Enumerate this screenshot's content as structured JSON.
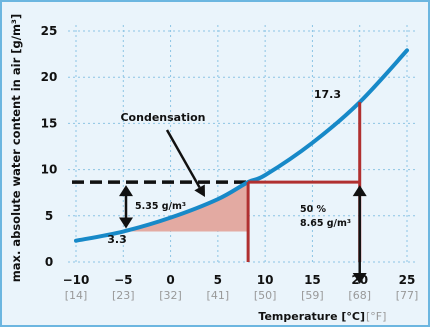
{
  "chart_data": {
    "type": "line",
    "title": "",
    "xlabel": "Temperature [°C]",
    "xlabel_secondary": "[°F]",
    "ylabel": "max. absolute water content in air [g/m³]",
    "xlim": [
      -10,
      25
    ],
    "ylim": [
      0,
      25
    ],
    "x_ticks": [
      "−10",
      "−5",
      "0",
      "5",
      "10",
      "15",
      "20",
      "25"
    ],
    "x_ticks_values": [
      -10,
      -5,
      0,
      5,
      10,
      15,
      20,
      25
    ],
    "x_ticks_fahrenheit": [
      "[14]",
      "[23]",
      "[32]",
      "[41]",
      "[50]",
      "[59]",
      "[68]",
      "[77]"
    ],
    "y_ticks": [
      "0",
      "5",
      "10",
      "15",
      "20",
      "25"
    ],
    "y_ticks_values": [
      0,
      5,
      10,
      15,
      20,
      25
    ],
    "grid": true,
    "series": [
      {
        "x": [
          -10,
          -5,
          0,
          5,
          8.2,
          10,
          15,
          20,
          25
        ],
        "y": [
          2.3,
          3.3,
          4.8,
          6.8,
          8.65,
          9.4,
          12.9,
          17.3,
          22.9
        ]
      }
    ],
    "annotations": {
      "condensation_label": "Condensation",
      "point_high_label": "17.3",
      "point_low_label": "3.3",
      "difference_label": "5.35 g/m³",
      "rh_label": "50 %",
      "rh_value_label": "8.65 g/m³",
      "saturation_level": 8.65,
      "dew_point_x": 8.2,
      "room_temp_x": 20,
      "room_saturation": 17.3,
      "cold_temp_x": -5,
      "cold_saturation": 3.3
    },
    "colors": {
      "curve": "#1789c8",
      "construction": "#b03030",
      "condensation_fill": "#e3aaa2",
      "dashed": "#111111",
      "grid": "#8cc4e4",
      "frame": "#6cb6e0",
      "background": "#eaf4fb"
    }
  }
}
